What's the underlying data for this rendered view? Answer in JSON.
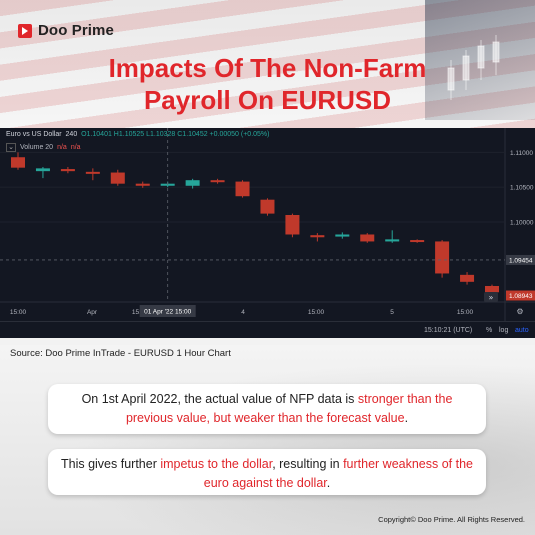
{
  "brand": {
    "name": "Doo Prime",
    "accent": "#e0262b"
  },
  "title": {
    "line1": "Impacts Of The Non-Farm",
    "line2": "Payroll On EURUSD"
  },
  "chart_header": {
    "symbol": "Euro vs US Dollar",
    "interval": "240",
    "ohlc": "O1.10401  H1.10525  L1.10328  C1.10452  +0.00050 (+0.05%)",
    "volume_label": "Volume 20",
    "volume_na1": "n/a",
    "volume_na2": "n/a"
  },
  "chart_footer": {
    "time": "15:10:21 (UTC)",
    "pct": "%",
    "log": "log",
    "auto": "auto"
  },
  "chart_data": {
    "type": "candlestick",
    "symbol": "EURUSD",
    "interval": "240",
    "up_color": "#26a69a",
    "down_color": "#c0392b",
    "ylim": [
      1.0885,
      1.1135
    ],
    "y_ticks": [
      "1.11000",
      "1.10500",
      "1.10000"
    ],
    "price_labels": [
      "1.09454",
      "1.08943"
    ],
    "x_ticks": [
      "15:00",
      "Apr",
      "15:00",
      "4",
      "15:00",
      "5",
      "15:00"
    ],
    "crosshair_label": "01 Apr '22   15:00",
    "candles": [
      {
        "o": 1.1093,
        "h": 1.11,
        "l": 1.1075,
        "c": 1.1078
      },
      {
        "o": 1.1073,
        "h": 1.1079,
        "l": 1.1063,
        "c": 1.1077
      },
      {
        "o": 1.1076,
        "h": 1.1079,
        "l": 1.107,
        "c": 1.1073
      },
      {
        "o": 1.1072,
        "h": 1.1077,
        "l": 1.106,
        "c": 1.107
      },
      {
        "o": 1.1071,
        "h": 1.1075,
        "l": 1.1052,
        "c": 1.1055
      },
      {
        "o": 1.1055,
        "h": 1.1058,
        "l": 1.1049,
        "c": 1.1052
      },
      {
        "o": 1.1052,
        "h": 1.1058,
        "l": 1.105,
        "c": 1.1055
      },
      {
        "o": 1.1052,
        "h": 1.1062,
        "l": 1.1048,
        "c": 1.106
      },
      {
        "o": 1.106,
        "h": 1.1062,
        "l": 1.1055,
        "c": 1.1059
      },
      {
        "o": 1.1058,
        "h": 1.106,
        "l": 1.1035,
        "c": 1.1037
      },
      {
        "o": 1.1032,
        "h": 1.1034,
        "l": 1.1009,
        "c": 1.1012
      },
      {
        "o": 1.101,
        "h": 1.1012,
        "l": 1.0978,
        "c": 1.0982
      },
      {
        "o": 1.0981,
        "h": 1.0984,
        "l": 1.0972,
        "c": 1.0978
      },
      {
        "o": 1.0979,
        "h": 1.0985,
        "l": 1.0976,
        "c": 1.0982
      },
      {
        "o": 1.0982,
        "h": 1.0984,
        "l": 1.097,
        "c": 1.0972
      },
      {
        "o": 1.0972,
        "h": 1.0988,
        "l": 1.097,
        "c": 1.0975
      },
      {
        "o": 1.0974,
        "h": 1.0975,
        "l": 1.097,
        "c": 1.0972
      },
      {
        "o": 1.0972,
        "h": 1.0974,
        "l": 1.092,
        "c": 1.0926
      },
      {
        "o": 1.0924,
        "h": 1.0928,
        "l": 1.091,
        "c": 1.0914
      },
      {
        "o": 1.0908,
        "h": 1.091,
        "l": 1.0895,
        "c": 1.0899
      }
    ]
  },
  "source": "Source: Doo Prime InTrade - EURUSD 1 Hour Chart",
  "box1": {
    "text1": "On 1st April 2022, the actual value of NFP data is ",
    "red1": "stronger than the previous value, but weaker than the forecast value",
    "text2": "."
  },
  "box2": {
    "text1": "This gives further ",
    "red1": "impetus to the dollar",
    "text2": ", resulting in ",
    "red2": "further weakness of the euro against the dollar",
    "text3": "."
  },
  "copyright": "Copyright© Doo Prime. All Rights Reserved."
}
